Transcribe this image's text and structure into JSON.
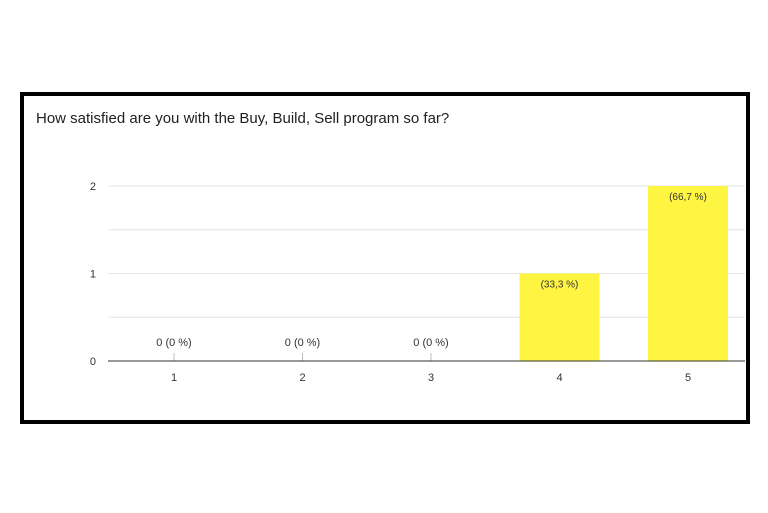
{
  "question": "How satisfied are you with the Buy, Build, Sell program so far?",
  "colors": {
    "bar": "#fdf541",
    "grid": "#e6e6e6",
    "axis": "#333333",
    "label": "#333333"
  },
  "chart_data": {
    "type": "bar",
    "title": "How satisfied are you with the Buy, Build, Sell program so far?",
    "xlabel": "",
    "ylabel": "",
    "categories": [
      "1",
      "2",
      "3",
      "4",
      "5"
    ],
    "values": [
      0,
      0,
      0,
      1,
      2
    ],
    "data_labels": [
      "0 (0 %)",
      "0 (0 %)",
      "0 (0 %)",
      "(33,3 %)",
      "(66,7 %)"
    ],
    "y_ticks": [
      "0",
      "1",
      "2"
    ],
    "ylim": [
      0,
      2
    ],
    "grid": true,
    "legend": "none"
  }
}
